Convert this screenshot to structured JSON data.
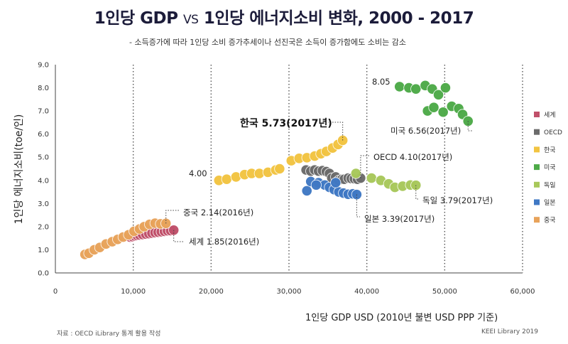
{
  "header": {
    "title_part1": "1인당 GDP",
    "title_vs": "VS",
    "title_part2": "1인당 에너지소비 변화, 2000 - 2017",
    "subtitle": "- 소득증가에 따라 1인당 소비 증가추세이나 선진국은 소득이 증가함에도 소비는 감소"
  },
  "footer": {
    "source": "자료 : OECD iLibrary  통계 활용 작성",
    "credit": "KEEI Library 2019"
  },
  "chart_data": {
    "type": "scatter",
    "title": "1인당 GDP VS 1인당 에너지소비 변화, 2000 - 2017",
    "xlabel": "1인당 GDP USD (2010년 불변  USD PPP 기준)",
    "ylabel": "1인당 에너지소비(toe/인)",
    "xlim": [
      0,
      60000
    ],
    "ylim": [
      0,
      9
    ],
    "xticks": [
      0,
      10000,
      20000,
      30000,
      40000,
      50000,
      60000
    ],
    "xtick_labels": [
      "0",
      "10,000",
      "20,000",
      "30,000",
      "40,000",
      "50,000",
      "60,000"
    ],
    "yticks": [
      0,
      1,
      2,
      3,
      4,
      5,
      6,
      7,
      8,
      9
    ],
    "ytick_labels": [
      "0.0",
      "1.0",
      "2.0",
      "3.0",
      "4.0",
      "5.0",
      "6.0",
      "7.0",
      "8.0",
      "9.0"
    ],
    "grid": "vertical-dotted",
    "legend_position": "right",
    "series": [
      {
        "name": "세계",
        "color": "#c0506a",
        "points": [
          [
            9600,
            1.55
          ],
          [
            9900,
            1.57
          ],
          [
            10200,
            1.6
          ],
          [
            10500,
            1.62
          ],
          [
            10800,
            1.64
          ],
          [
            11200,
            1.66
          ],
          [
            11600,
            1.68
          ],
          [
            12000,
            1.7
          ],
          [
            12400,
            1.72
          ],
          [
            12800,
            1.74
          ],
          [
            13200,
            1.76
          ],
          [
            13600,
            1.78
          ],
          [
            14000,
            1.8
          ],
          [
            14400,
            1.82
          ],
          [
            14800,
            1.83
          ],
          [
            15200,
            1.85
          ]
        ]
      },
      {
        "name": "OECD",
        "color": "#6b6b6b",
        "points": [
          [
            32200,
            4.45
          ],
          [
            32800,
            4.4
          ],
          [
            33300,
            4.45
          ],
          [
            33800,
            4.4
          ],
          [
            34300,
            4.42
          ],
          [
            34800,
            4.38
          ],
          [
            35200,
            4.3
          ],
          [
            35500,
            4.1
          ],
          [
            36000,
            4.15
          ],
          [
            36400,
            4.0
          ],
          [
            36800,
            4.05
          ],
          [
            37100,
            4.05
          ],
          [
            37600,
            4.1
          ],
          [
            38000,
            4.08
          ],
          [
            38400,
            4.07
          ],
          [
            38800,
            4.05
          ],
          [
            39200,
            4.1
          ]
        ]
      },
      {
        "name": "한국",
        "color": "#f2c441",
        "points": [
          [
            21000,
            4.0
          ],
          [
            22000,
            4.05
          ],
          [
            23200,
            4.15
          ],
          [
            24300,
            4.25
          ],
          [
            25200,
            4.3
          ],
          [
            26200,
            4.3
          ],
          [
            27300,
            4.35
          ],
          [
            28300,
            4.45
          ],
          [
            28800,
            4.5
          ],
          [
            30300,
            4.85
          ],
          [
            31300,
            4.95
          ],
          [
            32300,
            4.98
          ],
          [
            33300,
            5.05
          ],
          [
            34100,
            5.15
          ],
          [
            34800,
            5.25
          ],
          [
            35600,
            5.4
          ],
          [
            36300,
            5.55
          ],
          [
            36900,
            5.73
          ]
        ]
      },
      {
        "name": "미국",
        "color": "#4daa48",
        "points": [
          [
            44200,
            8.05
          ],
          [
            45400,
            8.0
          ],
          [
            46300,
            7.95
          ],
          [
            47500,
            8.1
          ],
          [
            48400,
            7.95
          ],
          [
            49200,
            7.7
          ],
          [
            50100,
            8.0
          ],
          [
            47800,
            7.0
          ],
          [
            48600,
            7.15
          ],
          [
            49800,
            6.95
          ],
          [
            50900,
            7.2
          ],
          [
            51800,
            7.1
          ],
          [
            52300,
            6.85
          ],
          [
            53000,
            6.56
          ]
        ]
      },
      {
        "name": "독일",
        "color": "#a8c85a",
        "points": [
          [
            38600,
            4.3
          ],
          [
            40600,
            4.1
          ],
          [
            41800,
            4.0
          ],
          [
            42800,
            3.85
          ],
          [
            43600,
            3.7
          ],
          [
            44600,
            3.75
          ],
          [
            45600,
            3.8
          ],
          [
            46300,
            3.79
          ]
        ]
      },
      {
        "name": "일본",
        "color": "#3f78c4",
        "points": [
          [
            32300,
            3.55
          ],
          [
            32800,
            3.95
          ],
          [
            33800,
            3.9
          ],
          [
            34600,
            3.8
          ],
          [
            35200,
            3.7
          ],
          [
            35800,
            3.6
          ],
          [
            36400,
            3.5
          ],
          [
            37000,
            3.45
          ],
          [
            37600,
            3.4
          ],
          [
            38200,
            3.42
          ],
          [
            38700,
            3.39
          ],
          [
            33500,
            3.8
          ],
          [
            36000,
            3.9
          ]
        ]
      },
      {
        "name": "중국",
        "color": "#e8a35a",
        "points": [
          [
            3800,
            0.8
          ],
          [
            4300,
            0.85
          ],
          [
            5000,
            1.0
          ],
          [
            5700,
            1.1
          ],
          [
            6500,
            1.25
          ],
          [
            7300,
            1.35
          ],
          [
            8000,
            1.45
          ],
          [
            8700,
            1.55
          ],
          [
            9400,
            1.65
          ],
          [
            10100,
            1.8
          ],
          [
            10800,
            1.9
          ],
          [
            11400,
            2.0
          ],
          [
            12100,
            2.1
          ],
          [
            12800,
            2.15
          ],
          [
            13500,
            2.12
          ],
          [
            14200,
            2.14
          ]
        ]
      }
    ],
    "annotations": [
      {
        "text": "중국 2.14(2016년)",
        "series": "중국"
      },
      {
        "text": "세계 1.85(2016년)",
        "series": "세계"
      },
      {
        "text": "4.00",
        "series": "한국"
      },
      {
        "text": "한국 5.73(2017년)",
        "series": "한국",
        "bold": true
      },
      {
        "text": "OECD 4.10(2017년)",
        "series": "OECD"
      },
      {
        "text": "독일 3.79(2017년)",
        "series": "독일"
      },
      {
        "text": "일본 3.39(2017년)",
        "series": "일본"
      },
      {
        "text": "8.05",
        "series": "미국"
      },
      {
        "text": "미국 6.56(2017년)",
        "series": "미국"
      }
    ]
  }
}
